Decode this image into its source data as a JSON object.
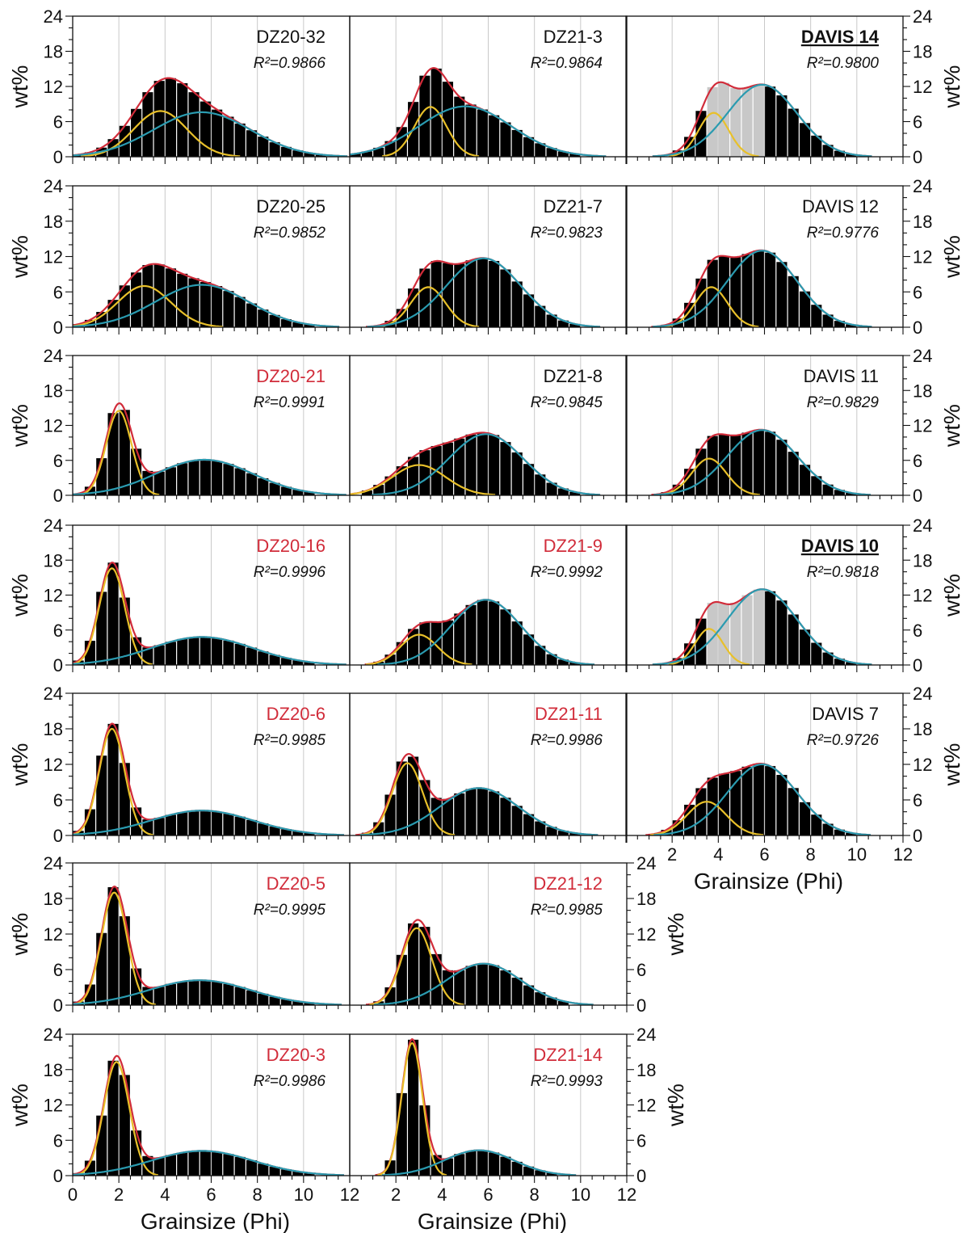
{
  "chart_data": {
    "type": "bar",
    "ylabel": "wt%",
    "xlabel": "Grainsize (Phi)",
    "x_ticks": [
      0,
      2,
      4,
      6,
      8,
      10,
      12
    ],
    "x_ticks_right_bottom": [
      2,
      4,
      6,
      8,
      10,
      12
    ],
    "y_ticks": [
      0,
      6,
      12,
      18,
      24
    ],
    "xlim": [
      0,
      12
    ],
    "ylim": [
      0,
      24
    ],
    "bin_width_phi": 0.5,
    "grid": "vertical",
    "colors": {
      "bars": "#000000",
      "grey_bars": "#c8c8c8",
      "fit_total": "#d12c3a",
      "fit_coarse": "#e8c02a",
      "fit_fine": "#2a9bb0",
      "label_red": "#d12c3a",
      "label_black": "#111111"
    },
    "panels": [
      {
        "label": "DZ20-32",
        "r2": "R²=0.9866",
        "label_color": "black",
        "underline": false,
        "coarse": {
          "mu": 3.8,
          "sigma": 1.15,
          "amp": 7.8
        },
        "fine": {
          "mu": 5.6,
          "sigma": 2.1,
          "amp": 7.6
        }
      },
      {
        "label": "DZ21-3",
        "r2": "R²=0.9864",
        "label_color": "black",
        "underline": false,
        "coarse": {
          "mu": 3.5,
          "sigma": 0.7,
          "amp": 8.5
        },
        "fine": {
          "mu": 5.0,
          "sigma": 2.0,
          "amp": 8.6
        }
      },
      {
        "label": "DAVIS 14",
        "r2": "R²=0.9800",
        "label_color": "black",
        "underline": true,
        "coarse": {
          "mu": 3.8,
          "sigma": 0.65,
          "amp": 7.5
        },
        "fine": {
          "mu": 5.9,
          "sigma": 1.5,
          "amp": 12.3
        },
        "grey_range": [
          3.5,
          6.0
        ]
      },
      {
        "label": "DZ20-25",
        "r2": "R²=0.9852",
        "label_color": "black",
        "underline": false,
        "coarse": {
          "mu": 3.1,
          "sigma": 1.15,
          "amp": 7.0
        },
        "fine": {
          "mu": 5.6,
          "sigma": 2.0,
          "amp": 7.2
        }
      },
      {
        "label": "DZ21-7",
        "r2": "R²=0.9823",
        "label_color": "black",
        "underline": false,
        "coarse": {
          "mu": 3.4,
          "sigma": 0.75,
          "amp": 6.8
        },
        "fine": {
          "mu": 5.8,
          "sigma": 1.6,
          "amp": 11.7
        }
      },
      {
        "label": "DAVIS 12",
        "r2": "R²=0.9776",
        "label_color": "black",
        "underline": false,
        "coarse": {
          "mu": 3.7,
          "sigma": 0.7,
          "amp": 6.8
        },
        "fine": {
          "mu": 5.9,
          "sigma": 1.5,
          "amp": 13.0
        }
      },
      {
        "label": "DZ20-21",
        "r2": "R²=0.9991",
        "label_color": "red",
        "underline": false,
        "coarse": {
          "mu": 2.0,
          "sigma": 0.55,
          "amp": 14.5
        },
        "fine": {
          "mu": 5.7,
          "sigma": 2.1,
          "amp": 6.1
        }
      },
      {
        "label": "DZ21-8",
        "r2": "R²=0.9845",
        "label_color": "black",
        "underline": false,
        "coarse": {
          "mu": 3.0,
          "sigma": 1.15,
          "amp": 5.2
        },
        "fine": {
          "mu": 5.9,
          "sigma": 1.6,
          "amp": 10.5
        }
      },
      {
        "label": "DAVIS 11",
        "r2": "R²=0.9829",
        "label_color": "black",
        "underline": false,
        "coarse": {
          "mu": 3.6,
          "sigma": 0.75,
          "amp": 6.3
        },
        "fine": {
          "mu": 5.9,
          "sigma": 1.5,
          "amp": 11.2
        }
      },
      {
        "label": "DZ20-16",
        "r2": "R²=0.9996",
        "label_color": "red",
        "underline": false,
        "coarse": {
          "mu": 1.7,
          "sigma": 0.55,
          "amp": 16.6
        },
        "fine": {
          "mu": 5.6,
          "sigma": 2.2,
          "amp": 4.8
        }
      },
      {
        "label": "DZ21-9",
        "r2": "R²=0.9992",
        "label_color": "red",
        "underline": false,
        "coarse": {
          "mu": 3.0,
          "sigma": 0.8,
          "amp": 5.2
        },
        "fine": {
          "mu": 5.9,
          "sigma": 1.5,
          "amp": 11.2
        }
      },
      {
        "label": "DAVIS 10",
        "r2": "R²=0.9818",
        "label_color": "black",
        "underline": true,
        "coarse": {
          "mu": 3.6,
          "sigma": 0.6,
          "amp": 6.2
        },
        "fine": {
          "mu": 5.9,
          "sigma": 1.5,
          "amp": 13.0
        },
        "grey_range": [
          3.5,
          6.0
        ]
      },
      {
        "label": "DZ20-6",
        "r2": "R²=0.9985",
        "label_color": "red",
        "underline": false,
        "coarse": {
          "mu": 1.7,
          "sigma": 0.55,
          "amp": 18.0
        },
        "fine": {
          "mu": 5.6,
          "sigma": 2.2,
          "amp": 4.2
        }
      },
      {
        "label": "DZ21-11",
        "r2": "R²=0.9986",
        "label_color": "red",
        "underline": false,
        "coarse": {
          "mu": 2.5,
          "sigma": 0.65,
          "amp": 12.2
        },
        "fine": {
          "mu": 5.6,
          "sigma": 1.7,
          "amp": 8.0
        }
      },
      {
        "label": "DAVIS 7",
        "r2": "R²=0.9726",
        "label_color": "black",
        "underline": false,
        "coarse": {
          "mu": 3.5,
          "sigma": 0.85,
          "amp": 5.7
        },
        "fine": {
          "mu": 5.9,
          "sigma": 1.5,
          "amp": 12.0
        }
      },
      {
        "label": "DZ20-5",
        "r2": "R²=0.9995",
        "label_color": "red",
        "underline": false,
        "coarse": {
          "mu": 1.8,
          "sigma": 0.55,
          "amp": 19.0
        },
        "fine": {
          "mu": 5.5,
          "sigma": 2.2,
          "amp": 4.2
        }
      },
      {
        "label": "DZ21-12",
        "r2": "R²=0.9985",
        "label_color": "red",
        "underline": false,
        "coarse": {
          "mu": 2.9,
          "sigma": 0.65,
          "amp": 13.0
        },
        "fine": {
          "mu": 5.8,
          "sigma": 1.6,
          "amp": 7.0
        }
      },
      {
        "label": "DZ20-3",
        "r2": "R²=0.9986",
        "label_color": "red",
        "underline": false,
        "coarse": {
          "mu": 1.9,
          "sigma": 0.55,
          "amp": 19.3
        },
        "fine": {
          "mu": 5.6,
          "sigma": 2.2,
          "amp": 4.2
        }
      },
      {
        "label": "DZ21-14",
        "r2": "R²=0.9993",
        "label_color": "red",
        "underline": false,
        "coarse": {
          "mu": 2.7,
          "sigma": 0.45,
          "amp": 22.5
        },
        "fine": {
          "mu": 5.6,
          "sigma": 1.5,
          "amp": 4.3
        }
      }
    ]
  }
}
